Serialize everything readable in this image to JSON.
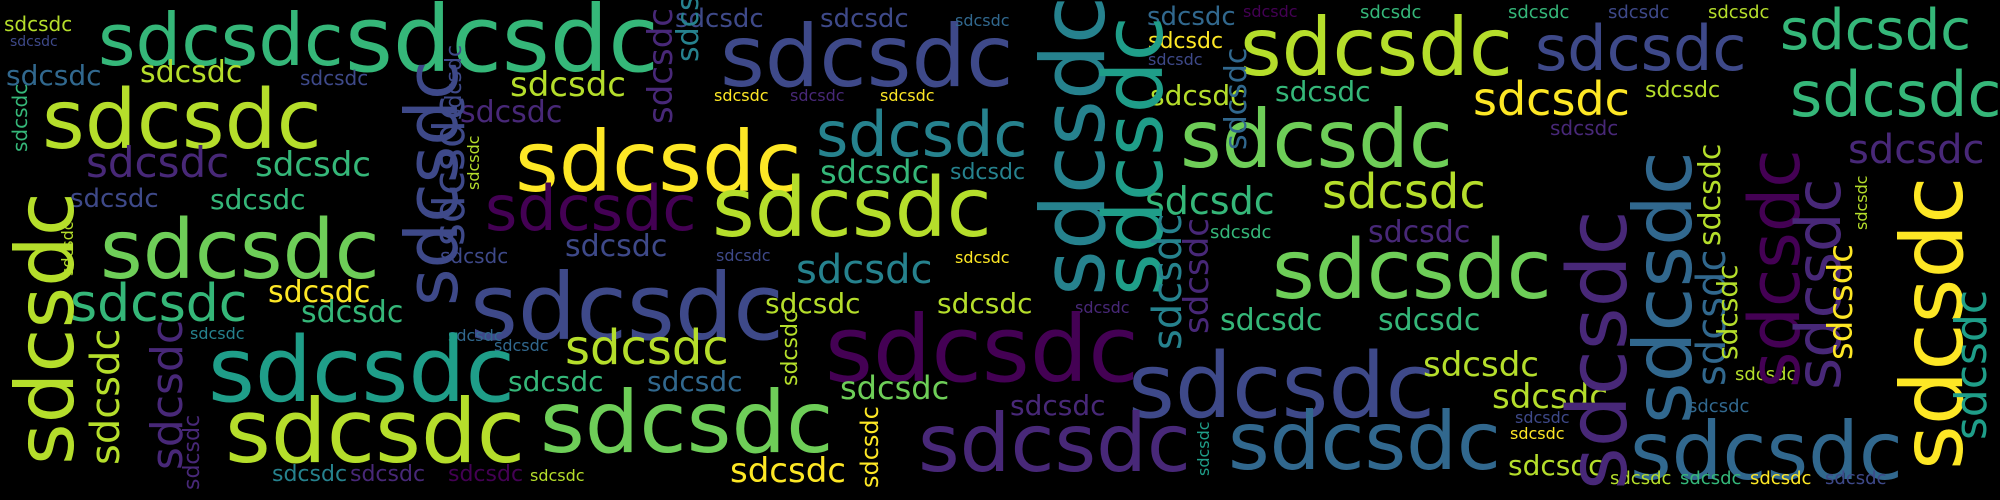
{
  "word_cloud": {
    "word": "sdcsdc",
    "background": "#000000",
    "palette": {
      "yellow": "#fde725",
      "lime": "#b5de2b",
      "green": "#6ece58",
      "jade": "#35b779",
      "teal": "#1f9e89",
      "cyan": "#26828e",
      "blue": "#31688e",
      "indigo": "#3e4989",
      "violet": "#482878",
      "purple": "#440154"
    }
  }
}
